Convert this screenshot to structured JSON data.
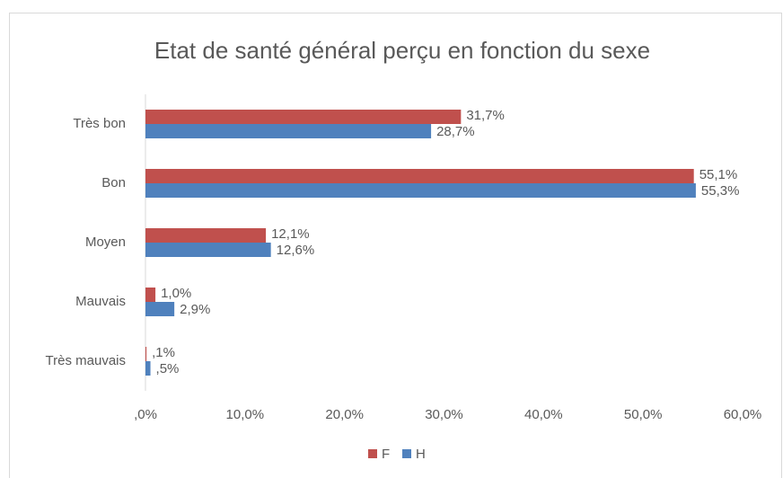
{
  "chart_data": {
    "type": "bar",
    "orientation": "horizontal",
    "title": "Etat de santé général perçu en fonction du sexe",
    "categories": [
      "Très bon",
      "Bon",
      "Moyen",
      "Mauvais",
      "Très mauvais"
    ],
    "series": [
      {
        "name": "F",
        "color": "#c0504d",
        "values": [
          31.7,
          55.1,
          12.1,
          1.0,
          0.1
        ],
        "value_labels": [
          "31,7%",
          "55,1%",
          "12,1%",
          "1,0%",
          ",1%"
        ]
      },
      {
        "name": "H",
        "color": "#4f81bd",
        "values": [
          28.7,
          55.3,
          12.6,
          2.9,
          0.5
        ],
        "value_labels": [
          "28,7%",
          "55,3%",
          "12,6%",
          "2,9%",
          ",5%"
        ]
      }
    ],
    "xlim": [
      0,
      60
    ],
    "xticks": [
      {
        "value": 0,
        "label": ",0%"
      },
      {
        "value": 10,
        "label": "10,0%"
      },
      {
        "value": 20,
        "label": "20,0%"
      },
      {
        "value": 30,
        "label": "30,0%"
      },
      {
        "value": 40,
        "label": "40,0%"
      },
      {
        "value": 50,
        "label": "50,0%"
      },
      {
        "value": 60,
        "label": "60,0%"
      }
    ],
    "grid": false,
    "legend": "bottom"
  }
}
